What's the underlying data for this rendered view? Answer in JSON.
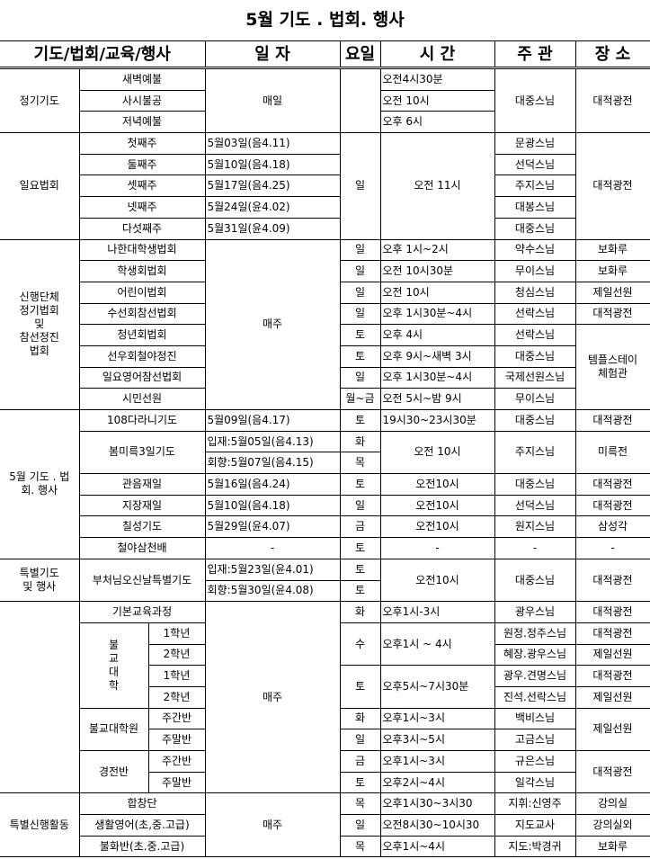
{
  "title": "5월 기도 . 법회. 행사",
  "headers": [
    "기도/법회/교육/행사",
    "일 자",
    "요일",
    "시 간",
    "주 관",
    "장 소"
  ],
  "rows": [
    [
      "정기기도",
      "새벽예불",
      "매일",
      "",
      "오전4시30분",
      "대중스님",
      "대적광전"
    ],
    [
      "사시불공",
      "오전 10시"
    ],
    [
      "저녁예불",
      "오후 6시"
    ],
    [
      "일요법회",
      "첫째주",
      "5월03일(음4.11)",
      "일",
      "오전 11시",
      "문광스님",
      "대적광전"
    ],
    [
      "둘째주",
      "5월10일(음4.18)",
      "선덕스님"
    ],
    [
      "셋째주",
      "5월17일(음4.25)",
      "주지스님"
    ],
    [
      "넷째주",
      "5월24일(윤4.02)",
      "대봉스님"
    ],
    [
      "다섯째주",
      "5월31일(윤4.09)",
      "대중스님"
    ],
    [
      "신행단체\n정기법회\n및\n참선정진\n법회",
      "나한대학생법회",
      "매주",
      "일",
      "오후 1시~2시",
      "약수스님",
      "보화루"
    ],
    [
      "학생회법회",
      "일",
      "오전 10시30분",
      "무이스님",
      "보화루"
    ],
    [
      "어린이법회",
      "일",
      "오전 10시",
      "청심스님",
      "제일선원"
    ],
    [
      "수선회참선법회",
      "일",
      "오후 1시30분~4시",
      "선락스님",
      "대적광전"
    ],
    [
      "청년회법회",
      "토",
      "오후 4시",
      "선락스님",
      "템플스테이\n체험관"
    ],
    [
      "선우회철야정진",
      "토",
      "오후 9시~새벽 3시",
      "대중스님"
    ],
    [
      "일요영어참선법회",
      "일",
      "오후 1시30분~4시",
      "국제선원스님"
    ],
    [
      "시민선원",
      "월~금",
      "오전 5시~밤 9시",
      "무이스님"
    ],
    [
      "5월 기도 . 법\n회. 행사",
      "108다라니기도",
      "5월09일(음4.17)",
      "토",
      "19시30~23시30분",
      "대중스님",
      "대적광전"
    ],
    [
      "봄미륵3일기도",
      "입재:5월05일(음4.13)",
      "화",
      "오전 10시",
      "주지스님",
      "미륵전"
    ],
    [
      "회향:5월07일(음4.15)",
      "목"
    ],
    [
      "관음재일",
      "5월16일(음4.24)",
      "토",
      "오전10시",
      "대중스님",
      "대적광전"
    ],
    [
      "지장재일",
      "5월10일(음4.18)",
      "일",
      "오전10시",
      "선덕스님",
      "대적광전"
    ],
    [
      "칠성기도",
      "5월29일(윤4.07)",
      "금",
      "오전10시",
      "원지스님",
      "삼성각"
    ],
    [
      "철야삼천배",
      "-",
      "토",
      "-",
      "-",
      "-"
    ],
    [
      "특별기도\n및 행사",
      "부처님오신날특별기도",
      "입재:5월23일(윤4.01)",
      "토",
      "오전10시",
      "대중스님",
      "대적광전"
    ],
    [
      "회향:5월30일(윤4.08)",
      "토"
    ],
    [
      "",
      "기본교육과정",
      "매주",
      "화",
      "오후1시-3시",
      "광우스님",
      "대적광전"
    ],
    [
      "불\n교\n대\n학",
      "1학년",
      "수",
      "오후1시 ~ 4시",
      "원정.정주스님",
      "대적광전"
    ],
    [
      "2학년",
      "혜장.광우스님",
      "제일선원"
    ],
    [
      "1학년",
      "토",
      "오후5시~7시30분",
      "광우.견명스님",
      "대적광전"
    ],
    [
      "2학년",
      "진석.선락스님",
      "제일선원"
    ],
    [
      "불교대학원",
      "주간반",
      "화",
      "오후1시~3시",
      "백비스님",
      "제일선원"
    ],
    [
      "주말반",
      "일",
      "오후3시~5시",
      "고금스님"
    ],
    [
      "경전반",
      "주간반",
      "금",
      "오후1시~3시",
      "규은스님",
      "대적광전"
    ],
    [
      "주말반",
      "토",
      "오후2시~4시",
      "일각스님"
    ],
    [
      "특별신행활동",
      "합창단",
      "매주",
      "목",
      "오후1시30~3시30",
      "지휘:신영주",
      "강의실"
    ],
    [
      "생활영어(초,중.고급)",
      "일",
      "오전8시30~10시30",
      "지도교사",
      "강의실외"
    ],
    [
      "불화반(초.중.고급)",
      "목",
      "오후1시~4시",
      "지도:박경귀",
      "보화루"
    ]
  ]
}
